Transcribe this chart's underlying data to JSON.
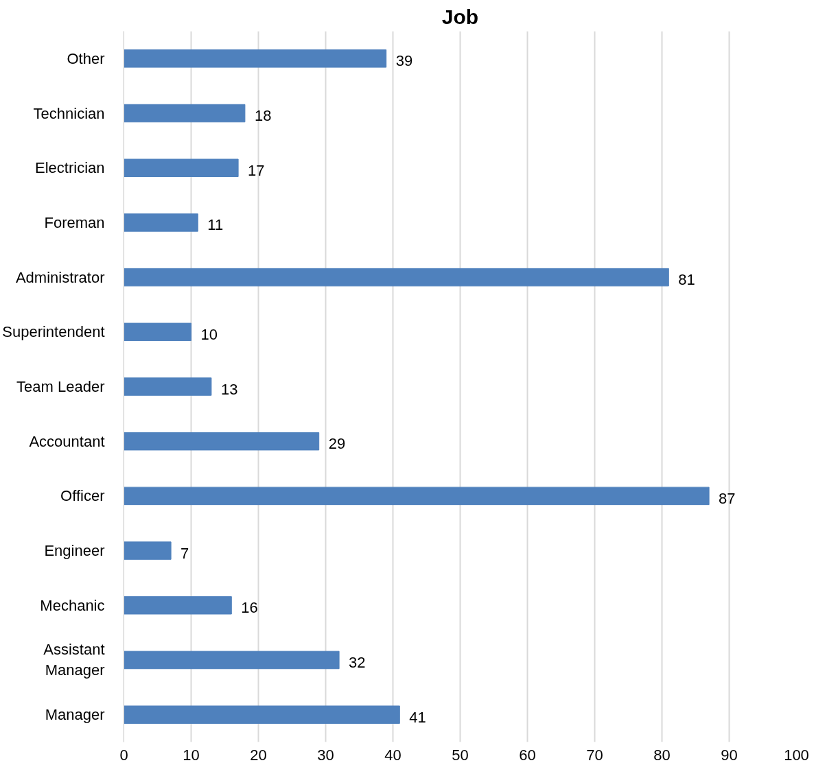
{
  "chart_data": {
    "type": "bar",
    "orientation": "horizontal",
    "title": "Job",
    "categories": [
      "Other",
      "Technician",
      "Electrician",
      "Foreman",
      "Administrator",
      "Superintendent",
      "Team Leader",
      "Accountant",
      "Officer",
      "Engineer",
      "Mechanic",
      "Assistant Manager",
      "Manager"
    ],
    "values": [
      39,
      18,
      17,
      11,
      81,
      10,
      13,
      29,
      87,
      7,
      16,
      32,
      41
    ],
    "color": "#4f81bd",
    "xlim": [
      0,
      100
    ],
    "xticks": [
      0,
      10,
      20,
      30,
      40,
      50,
      60,
      70,
      80,
      90,
      100
    ],
    "grid": "x",
    "data_labels": true
  }
}
